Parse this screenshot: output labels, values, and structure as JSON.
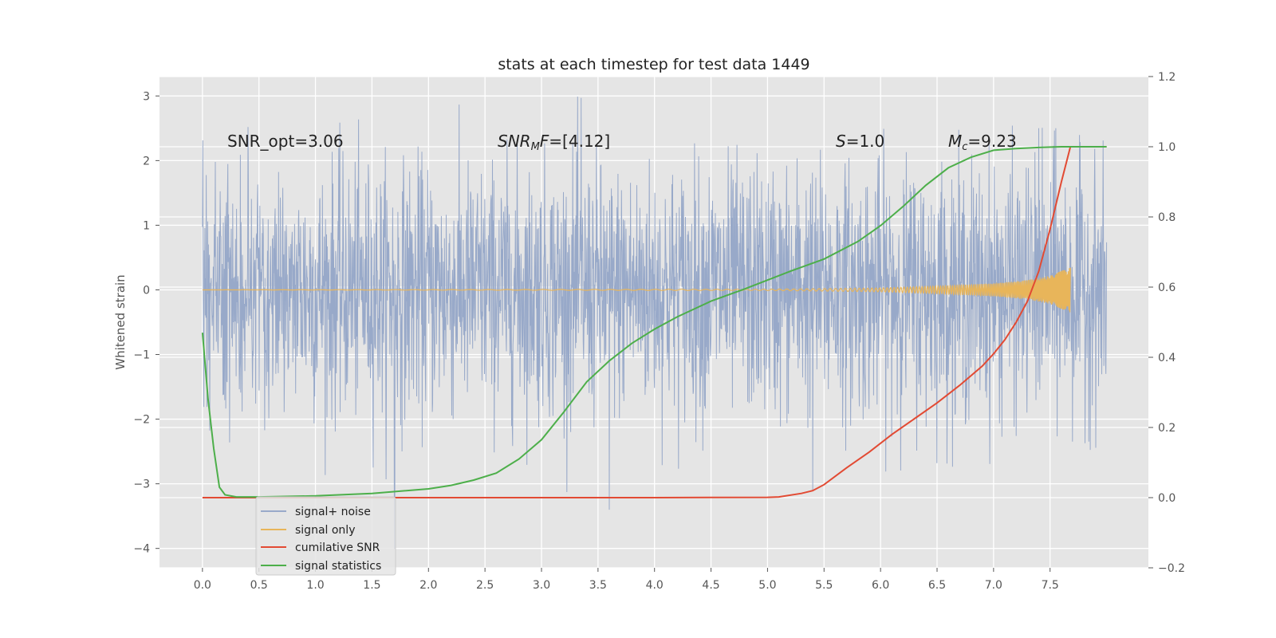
{
  "chart_data": {
    "type": "line",
    "title": "stats at each timestep for test data 1449",
    "ylabel": "Whitened strain",
    "xlim": [
      -0.38,
      8.37
    ],
    "ylim": [
      -4.3,
      3.3
    ],
    "y2lim": [
      -0.2,
      1.2
    ],
    "x_ticks": [
      "0.0",
      "0.5",
      "1.0",
      "1.5",
      "2.0",
      "2.5",
      "3.0",
      "3.5",
      "4.0",
      "4.5",
      "5.0",
      "5.5",
      "6.0",
      "6.5",
      "7.0",
      "7.5"
    ],
    "y_ticks": [
      "3",
      "2",
      "1",
      "0",
      "−1",
      "−2",
      "−3",
      "−4"
    ],
    "y2_ticks": [
      "1.2",
      "1.0",
      "0.8",
      "0.6",
      "0.4",
      "0.2",
      "0.0",
      "−0.2"
    ],
    "grid": true,
    "legend_position": "lower-left",
    "annotations": {
      "snr_opt": "SNR_opt=3.06",
      "snr_mf_sym": "SNR",
      "snr_mf_sub": "M",
      "snr_mf_f": "F",
      "snr_mf_val": "=[4.12]",
      "s_sym": "S",
      "s_val": "=1.0",
      "mc_sym": "M",
      "mc_sub": "c",
      "mc_val": "=9.23"
    },
    "series": [
      {
        "name": "signal+ noise",
        "color": "#98a9c9",
        "axis": "left",
        "kind": "noise",
        "x_range": [
          0.0,
          8.0
        ],
        "envelope": [
          [
            0.0,
            2.6
          ],
          [
            3.4,
            3.0
          ],
          [
            7.5,
            2.5
          ],
          [
            8.0,
            2.3
          ]
        ],
        "extremes": [
          [
            3.35,
            2.97
          ],
          [
            1.7,
            -4.0
          ],
          [
            3.6,
            -3.4
          ],
          [
            5.4,
            -3.1
          ],
          [
            7.4,
            2.5
          ],
          [
            7.55,
            2.5
          ]
        ]
      },
      {
        "name": "signal only",
        "color": "#e8b55a",
        "axis": "left",
        "kind": "chirp",
        "x": [
          0.0,
          5.0,
          6.0,
          6.5,
          7.0,
          7.3,
          7.5,
          7.68
        ],
        "amplitude": [
          0.0,
          0.01,
          0.03,
          0.06,
          0.1,
          0.15,
          0.22,
          0.35
        ]
      },
      {
        "name": "cumilative SNR",
        "color": "#e24a33",
        "axis": "right",
        "x": [
          0.0,
          1.0,
          2.0,
          3.0,
          4.0,
          5.0,
          5.1,
          5.3,
          5.4,
          5.5,
          5.7,
          5.9,
          6.1,
          6.3,
          6.5,
          6.7,
          6.9,
          7.0,
          7.1,
          7.2,
          7.3,
          7.4,
          7.5,
          7.6,
          7.68,
          7.8,
          8.0
        ],
        "values": [
          0.0,
          0.0,
          0.0,
          0.0,
          0.0,
          0.001,
          0.002,
          0.012,
          0.02,
          0.037,
          0.085,
          0.13,
          0.18,
          0.225,
          0.27,
          0.32,
          0.375,
          0.41,
          0.45,
          0.5,
          0.56,
          0.645,
          0.765,
          0.9,
          1.0,
          1.0,
          1.0
        ]
      },
      {
        "name": "signal statistics",
        "color": "#4daf4a",
        "axis": "right",
        "x": [
          0.0,
          0.05,
          0.1,
          0.15,
          0.2,
          0.3,
          0.5,
          1.0,
          1.5,
          2.0,
          2.2,
          2.4,
          2.6,
          2.8,
          3.0,
          3.2,
          3.4,
          3.6,
          3.8,
          4.0,
          4.2,
          4.5,
          4.8,
          5.0,
          5.2,
          5.5,
          5.8,
          6.0,
          6.2,
          6.4,
          6.6,
          6.8,
          7.0,
          7.2,
          7.4,
          7.6,
          8.0
        ],
        "values": [
          0.47,
          0.28,
          0.14,
          0.03,
          0.008,
          0.002,
          0.002,
          0.005,
          0.012,
          0.025,
          0.035,
          0.05,
          0.07,
          0.11,
          0.165,
          0.245,
          0.33,
          0.39,
          0.44,
          0.48,
          0.515,
          0.56,
          0.595,
          0.62,
          0.645,
          0.68,
          0.73,
          0.775,
          0.83,
          0.89,
          0.94,
          0.97,
          0.99,
          0.995,
          0.998,
          1.0,
          1.0
        ]
      }
    ]
  }
}
